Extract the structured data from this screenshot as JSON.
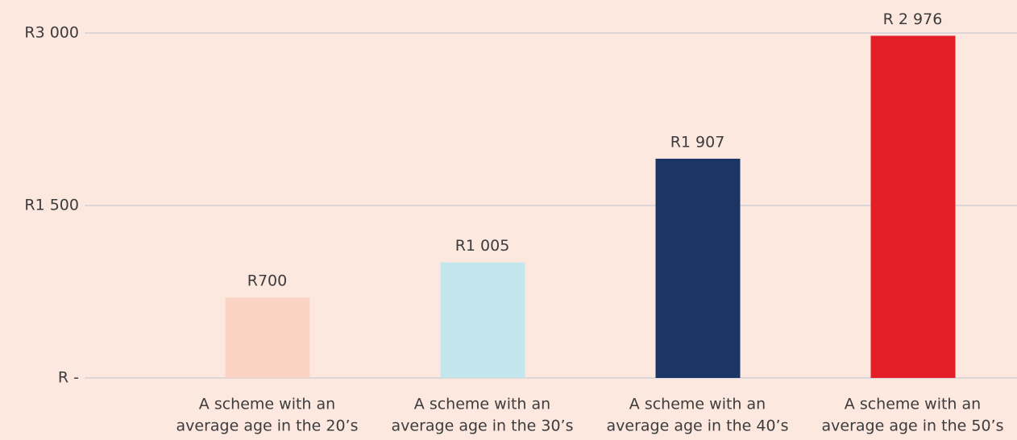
{
  "chart_data": {
    "type": "bar",
    "categories": [
      [
        "A scheme with an",
        "average age in the 20’s"
      ],
      [
        "A scheme with an",
        "average age in the 30’s"
      ],
      [
        "A scheme with an",
        "average age in the 40’s"
      ],
      [
        "A scheme with an",
        "average age in the 50’s"
      ]
    ],
    "values": [
      700,
      1005,
      1907,
      2976
    ],
    "value_labels": [
      "R700",
      "R1 005",
      "R1 907",
      "R 2 976"
    ],
    "colors": [
      "#fbd3c5",
      "#c3e6ec",
      "#1b3664",
      "#e31e27"
    ],
    "ylim": [
      0,
      3000
    ],
    "yticks": [
      {
        "value": 0,
        "label": "R -"
      },
      {
        "value": 1500,
        "label": "R1 500"
      },
      {
        "value": 3000,
        "label": "R3 000"
      }
    ],
    "grid": true
  }
}
